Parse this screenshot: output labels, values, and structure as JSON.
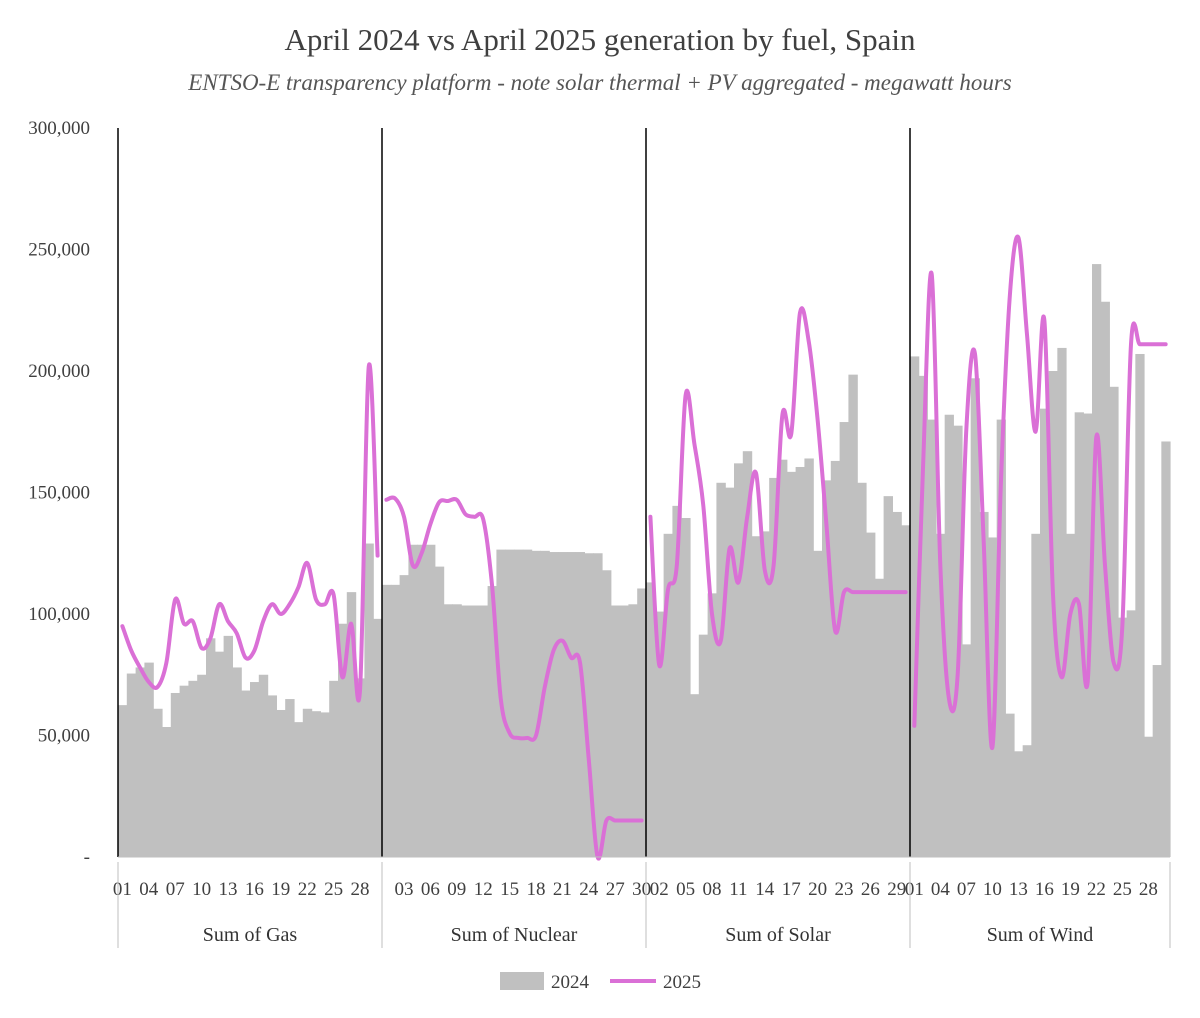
{
  "chart_data": {
    "type": "bar",
    "title": "April 2024 vs April 2025 generation by fuel, Spain",
    "subtitle": "ENTSO-E transparency platform - note solar thermal + PV aggregated - megawatt hours",
    "ylim": [
      0,
      300000
    ],
    "y_ticks": [
      0,
      50000,
      100000,
      150000,
      200000,
      250000,
      300000
    ],
    "y_tick_labels": [
      "-",
      "50,000",
      "100,000",
      "150,000",
      "200,000",
      "250,000",
      "300,000"
    ],
    "colors": {
      "2024": "#c0c0c0",
      "2025": "#da70d6",
      "divider": "#000000",
      "axis": "#bfbfbf"
    },
    "legend": {
      "position": "bottom-center",
      "entries": [
        "2024",
        "2025"
      ]
    },
    "groups": [
      {
        "name": "Sum of Gas",
        "tick_labels": [
          "01",
          "04",
          "07",
          "10",
          "13",
          "16",
          "19",
          "22",
          "25",
          "28"
        ],
        "tick_days": [
          1,
          4,
          7,
          10,
          13,
          16,
          19,
          22,
          25,
          28
        ],
        "days": [
          1,
          2,
          3,
          4,
          5,
          6,
          7,
          8,
          9,
          10,
          11,
          12,
          13,
          14,
          15,
          16,
          17,
          18,
          19,
          20,
          21,
          22,
          23,
          24,
          25,
          26,
          27,
          28,
          29,
          30
        ],
        "series": [
          {
            "name": "2024",
            "kind": "bar",
            "values": [
              62500,
              75500,
              78000,
              80000,
              61000,
              53500,
              67500,
              70500,
              72500,
              75000,
              90000,
              84500,
              91000,
              78000,
              68500,
              72000,
              75000,
              66500,
              60500,
              65000,
              55500,
              61000,
              60000,
              59500,
              72500,
              96000,
              109000,
              73500,
              129000,
              98000
            ]
          },
          {
            "name": "2025",
            "kind": "line",
            "values": [
              95000,
              85000,
              78000,
              72000,
              70000,
              80000,
              106000,
              96000,
              97000,
              86000,
              90000,
              104000,
              97000,
              92000,
              82000,
              85000,
              97000,
              104000,
              100000,
              104000,
              111000,
              121000,
              106000,
              104000,
              108000,
              74000,
              96000,
              68500,
              202000,
              124000
            ]
          }
        ]
      },
      {
        "name": "Sum of Nuclear",
        "tick_labels": [
          "03",
          "06",
          "09",
          "12",
          "15",
          "18",
          "21",
          "24",
          "27",
          "30"
        ],
        "tick_days": [
          3,
          6,
          9,
          12,
          15,
          18,
          21,
          24,
          27,
          30
        ],
        "days": [
          1,
          2,
          3,
          4,
          5,
          6,
          7,
          8,
          9,
          10,
          11,
          12,
          13,
          14,
          15,
          16,
          17,
          18,
          19,
          20,
          21,
          22,
          23,
          24,
          25,
          26,
          27,
          28,
          29,
          30
        ],
        "series": [
          {
            "name": "2024",
            "kind": "bar",
            "values": [
              112000,
              112000,
              116000,
              128500,
              128500,
              128500,
              119500,
              104000,
              104000,
              103500,
              103500,
              103500,
              111500,
              126500,
              126500,
              126500,
              126500,
              126000,
              126000,
              125500,
              125500,
              125500,
              125500,
              125000,
              125000,
              118000,
              103500,
              103500,
              104000,
              110500
            ]
          },
          {
            "name": "2025",
            "kind": "line",
            "values": [
              147000,
              147500,
              140000,
              120000,
              125000,
              137000,
              146000,
              146500,
              147000,
              141000,
              140000,
              139000,
              112000,
              65000,
              51000,
              49000,
              49000,
              50000,
              70000,
              85000,
              89000,
              82000,
              80000,
              40000,
              0,
              15000,
              15000,
              15000,
              15000,
              15000
            ]
          }
        ]
      },
      {
        "name": "Sum of Solar",
        "tick_labels": [
          "02",
          "05",
          "08",
          "11",
          "14",
          "17",
          "20",
          "23",
          "26",
          "29"
        ],
        "tick_days": [
          2,
          5,
          8,
          11,
          14,
          17,
          20,
          23,
          26,
          29
        ],
        "days": [
          1,
          2,
          3,
          4,
          5,
          6,
          7,
          8,
          9,
          10,
          11,
          12,
          13,
          14,
          15,
          16,
          17,
          18,
          19,
          20,
          21,
          22,
          23,
          24,
          25,
          26,
          27,
          28,
          29,
          30
        ],
        "series": [
          {
            "name": "2024",
            "kind": "bar",
            "values": [
              113000,
              101000,
              133000,
              144500,
              139500,
              67000,
              91500,
              108500,
              154000,
              152000,
              162000,
              167000,
              132000,
              134000,
              156000,
              163500,
              158500,
              160500,
              164000,
              126000,
              155000,
              163000,
              179000,
              198500,
              154000,
              133500,
              114500,
              148500,
              142000,
              136500
            ]
          },
          {
            "name": "2025",
            "kind": "line",
            "values": [
              140000,
              79000,
              110000,
              120000,
              190000,
              170000,
              145000,
              100000,
              89000,
              127000,
              113000,
              140000,
              158000,
              118000,
              120000,
              182000,
              174000,
              224000,
              212000,
              180000,
              137000,
              93000,
              109000,
              109000,
              109000,
              109000,
              109000,
              109000,
              109000,
              109000
            ]
          }
        ]
      },
      {
        "name": "Sum of Wind",
        "tick_labels": [
          "01",
          "04",
          "07",
          "10",
          "13",
          "16",
          "19",
          "22",
          "25",
          "28"
        ],
        "tick_days": [
          1,
          4,
          7,
          10,
          13,
          16,
          19,
          22,
          25,
          28
        ],
        "days": [
          1,
          2,
          3,
          4,
          5,
          6,
          7,
          8,
          9,
          10,
          11,
          12,
          13,
          14,
          15,
          16,
          17,
          18,
          19,
          20,
          21,
          22,
          23,
          24,
          25,
          26,
          27,
          28,
          29,
          30
        ],
        "series": [
          {
            "name": "2024",
            "kind": "bar",
            "values": [
              206000,
              198000,
              180000,
              133000,
              182000,
              177500,
              87500,
              197000,
              142000,
              131500,
              180000,
              59000,
              43500,
              46000,
              133000,
              184500,
              200000,
              209500,
              133000,
              183000,
              182500,
              244000,
              228500,
              193500,
              98500,
              101500,
              207000,
              49500,
              79000,
              171000
            ]
          },
          {
            "name": "2025",
            "kind": "line",
            "values": [
              54000,
              160000,
              240000,
              120000,
              65000,
              75000,
              176000,
              207000,
              130000,
              45000,
              155000,
              230000,
              255000,
              215000,
              175000,
              221000,
              108000,
              74000,
              100000,
              104000,
              72000,
              173000,
              120000,
              80000,
              95000,
              211000,
              211000,
              211000,
              211000,
              211000
            ]
          }
        ]
      }
    ]
  }
}
